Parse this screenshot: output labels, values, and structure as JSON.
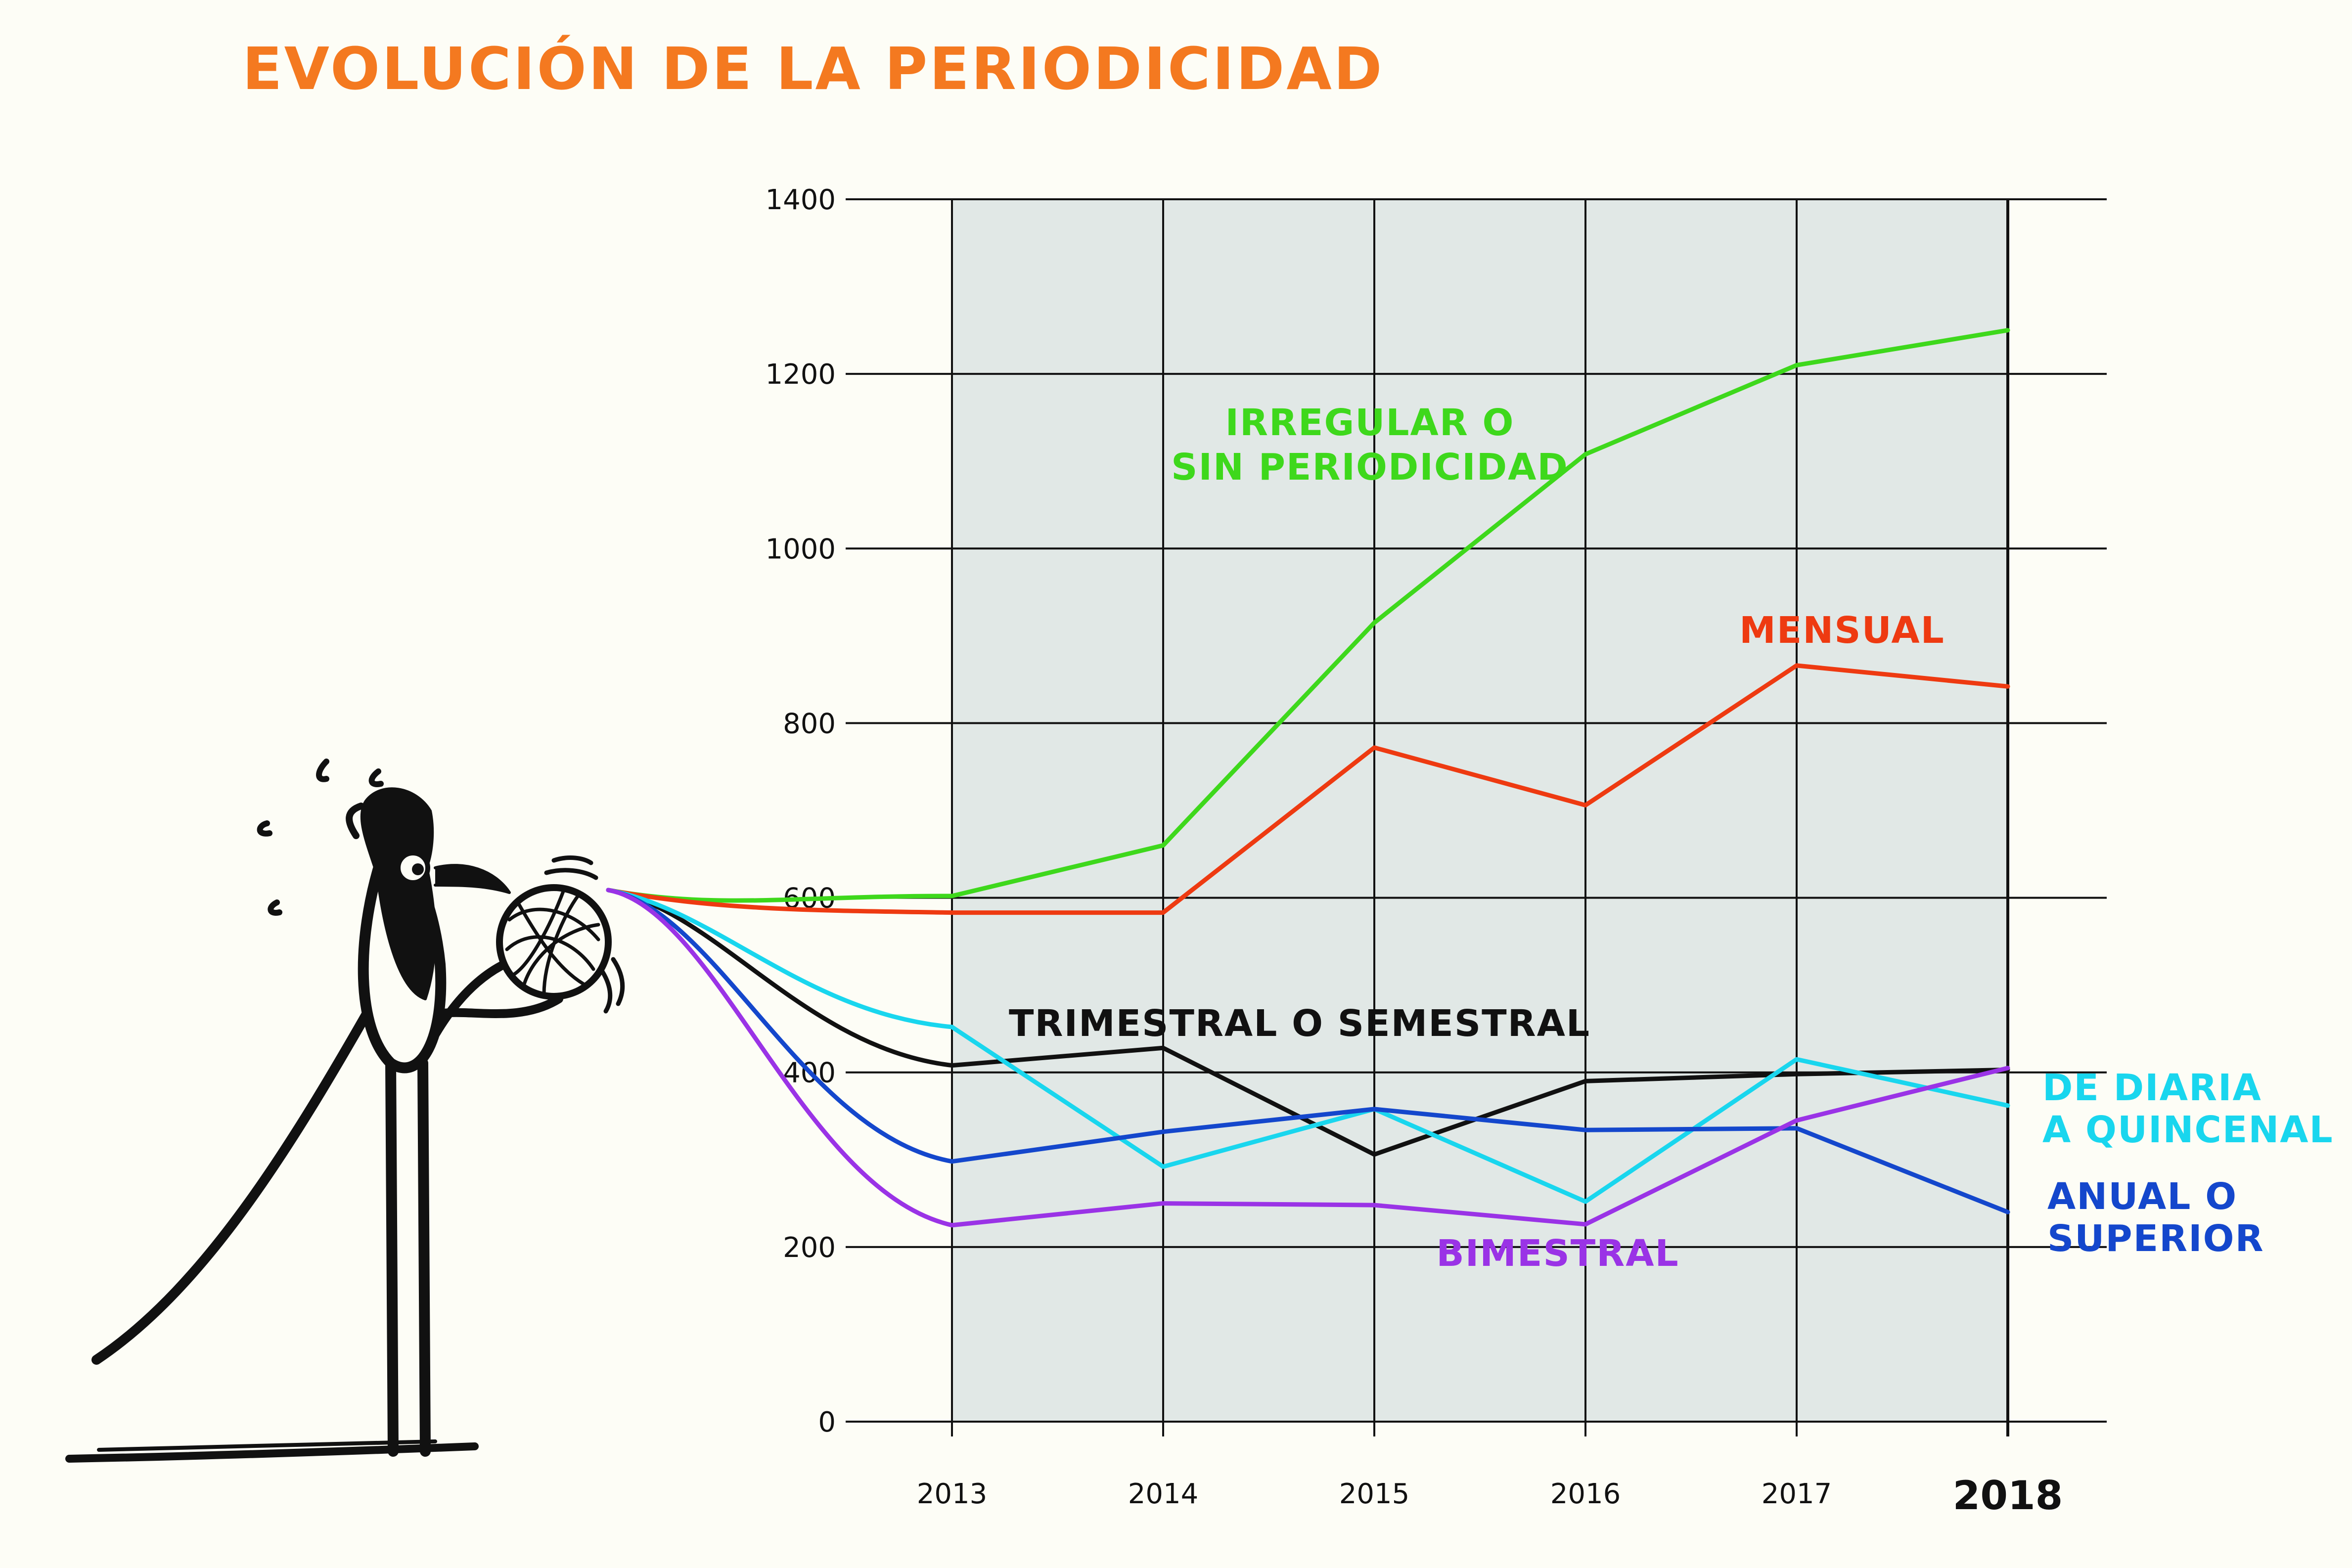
{
  "title": "EVOLUCIÓN DE LA PERIODICIDAD",
  "chart_data": {
    "type": "line",
    "title": "EVOLUCIÓN DE LA PERIODICIDAD",
    "x": [
      "2013",
      "2014",
      "2015",
      "2016",
      "2017",
      "2018"
    ],
    "ylim": [
      0,
      1400
    ],
    "yticks": [
      0,
      200,
      400,
      600,
      800,
      1000,
      1200,
      1400
    ],
    "grid": true,
    "legend": "inline labels",
    "series": [
      {
        "name": "IRREGULAR O SIN PERIODICIDAD",
        "label_lines": [
          "IRREGULAR O",
          "SIN PERIODICIDAD"
        ],
        "color": "#3ed81c",
        "values": [
          602,
          660,
          915,
          1108,
          1210,
          1250
        ]
      },
      {
        "name": "MENSUAL",
        "label_lines": [
          "MENSUAL"
        ],
        "color": "#ee3a11",
        "values": [
          583,
          583,
          772,
          706,
          866,
          842
        ]
      },
      {
        "name": "TRIMESTRAL O SEMESTRAL",
        "label_lines": [
          "TRIMESTRAL O SEMESTRAL"
        ],
        "color": "#111111",
        "values": [
          408,
          428,
          306,
          390,
          398,
          403
        ]
      },
      {
        "name": "DE DIARIA A QUINCENAL",
        "label_lines": [
          "DE DIARIA",
          "A QUINCENAL"
        ],
        "color": "#19d6ee",
        "values": [
          452,
          292,
          358,
          252,
          415,
          362
        ]
      },
      {
        "name": "ANUAL O SUPERIOR",
        "label_lines": [
          "ANUAL O",
          "SUPERIOR"
        ],
        "color": "#1447cc",
        "values": [
          298,
          332,
          358,
          334,
          336,
          240
        ]
      },
      {
        "name": "BIMESTRAL",
        "label_lines": [
          "BIMESTRAL"
        ],
        "color": "#9a33e6",
        "values": [
          225,
          250,
          248,
          226,
          345,
          405
        ]
      }
    ]
  },
  "colors": {
    "title": "#f47920",
    "plot_band": "#e1e8e6",
    "grid": "#111111"
  },
  "illustration": "bird-winding-yarn-icon"
}
